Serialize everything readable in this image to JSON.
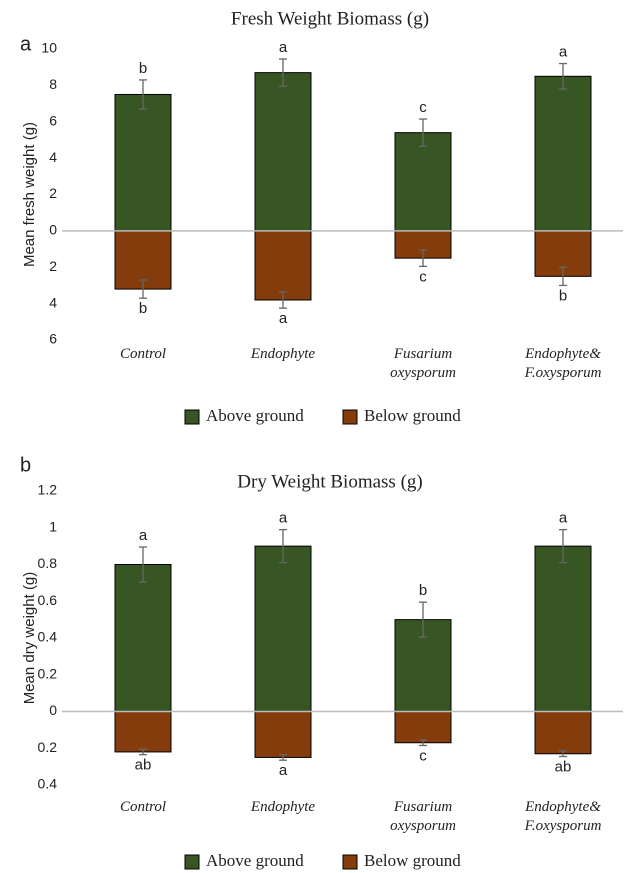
{
  "chart_data": [
    {
      "type": "bar",
      "panel": "a",
      "title": "Fresh Weight Biomass (g)",
      "y_label": "Mean fresh weight (g)",
      "categories": [
        "Control",
        "Endophyte",
        "Fusarium oxysporum",
        "Endophyte& F.oxysporum"
      ],
      "series": [
        {
          "name": "Above ground",
          "color": "#375623",
          "values": [
            7.5,
            8.7,
            5.4,
            8.5
          ],
          "errors": [
            0.8,
            0.75,
            0.75,
            0.7
          ],
          "letters": [
            "b",
            "a",
            "c",
            "a"
          ]
        },
        {
          "name": "Below ground",
          "color": "#843c0c",
          "values": [
            -3.2,
            -3.8,
            -1.5,
            -2.5
          ],
          "errors": [
            0.5,
            0.45,
            0.45,
            0.5
          ],
          "letters": [
            "b",
            "a",
            "c",
            "b"
          ]
        }
      ],
      "ylim": [
        -6,
        10
      ],
      "yticks": [
        10,
        8,
        6,
        4,
        2,
        0,
        {
          "value": -2,
          "label": "2"
        },
        {
          "value": -4,
          "label": "4"
        },
        {
          "value": -6,
          "label": "6"
        }
      ]
    },
    {
      "type": "bar",
      "panel": "b",
      "title": "Dry Weight Biomass (g)",
      "y_label": "Mean dry weight (g)",
      "categories": [
        "Control",
        "Endophyte",
        "Fusarium oxysporum",
        "Endophyte& F.oxysporum"
      ],
      "series": [
        {
          "name": "Above ground",
          "color": "#375623",
          "values": [
            0.8,
            0.9,
            0.5,
            0.9
          ],
          "errors": [
            0.095,
            0.09,
            0.095,
            0.09
          ],
          "letters": [
            "a",
            "a",
            "b",
            "a"
          ]
        },
        {
          "name": "Below ground",
          "color": "#843c0c",
          "values": [
            -0.22,
            -0.25,
            -0.17,
            -0.23
          ],
          "errors": [
            0.015,
            0.015,
            0.015,
            0.015
          ],
          "letters": [
            "ab",
            "a",
            "c",
            "ab"
          ]
        }
      ],
      "ylim": [
        -0.4,
        1.2
      ],
      "yticks": [
        1.2,
        1,
        0.8,
        0.6,
        0.4,
        0.2,
        0,
        {
          "value": -0.2,
          "label": "0.2"
        },
        {
          "value": -0.4,
          "label": "0.4"
        }
      ]
    }
  ]
}
